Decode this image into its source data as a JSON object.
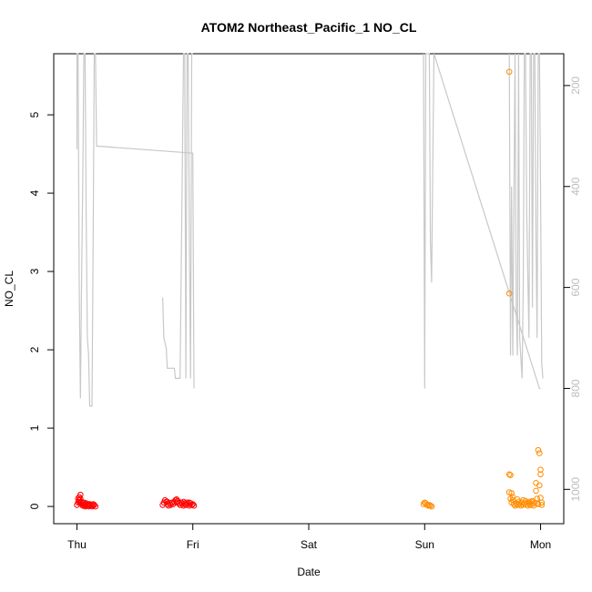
{
  "chart_data": {
    "type": "scatter",
    "title": "ATOM2 Northeast_Pacific_1 NO_CL",
    "xlabel": "Date",
    "ylabel": "NO_CL",
    "x_tick_labels": [
      "Thu",
      "Fri",
      "Sat",
      "Sun",
      "Mon"
    ],
    "x_tick_values": [
      0,
      1,
      2,
      3,
      4
    ],
    "xlim": [
      -0.2,
      4.2
    ],
    "ylim": [
      -0.22,
      5.78
    ],
    "y_ticks": [
      0,
      1,
      2,
      3,
      4,
      5
    ],
    "grid": false,
    "right_axis": {
      "label_color": "#bdbdbd",
      "ticks": [
        200,
        400,
        600,
        800,
        1000
      ],
      "lim": [
        1068,
        137
      ],
      "reversed": true
    },
    "colors": {
      "red_series": "#ff0000",
      "orange_series": "#ff8c00",
      "altitude_line": "#c8c8c8"
    },
    "series": [
      {
        "color_key": "red_series",
        "marker": "open-circle",
        "points": [
          [
            0.0,
            0.02
          ],
          [
            0.01,
            0.05
          ],
          [
            0.02,
            0.08
          ],
          [
            0.02,
            0.12
          ],
          [
            0.03,
            0.15
          ],
          [
            0.03,
            0.1
          ],
          [
            0.04,
            0.06
          ],
          [
            0.04,
            0.03
          ],
          [
            0.05,
            0.01
          ],
          [
            0.05,
            0.04
          ],
          [
            0.06,
            0.02
          ],
          [
            0.07,
            0.0
          ],
          [
            0.07,
            0.03
          ],
          [
            0.08,
            0.01
          ],
          [
            0.09,
            0.02
          ],
          [
            0.1,
            0.0
          ],
          [
            0.1,
            0.03
          ],
          [
            0.11,
            0.01
          ],
          [
            0.12,
            0.02
          ],
          [
            0.13,
            0.0
          ],
          [
            0.14,
            0.01
          ],
          [
            0.15,
            0.02
          ],
          [
            0.16,
            0.0
          ],
          [
            0.01,
            0.1
          ],
          [
            0.02,
            0.06
          ],
          [
            0.03,
            0.04
          ],
          [
            0.06,
            0.05
          ],
          [
            0.08,
            0.04
          ],
          [
            0.11,
            0.03
          ],
          [
            0.14,
            0.03
          ],
          [
            0.74,
            0.02
          ],
          [
            0.75,
            0.05
          ],
          [
            0.76,
            0.08
          ],
          [
            0.77,
            0.06
          ],
          [
            0.78,
            0.03
          ],
          [
            0.79,
            0.01
          ],
          [
            0.8,
            0.04
          ],
          [
            0.81,
            0.02
          ],
          [
            0.82,
            0.05
          ],
          [
            0.83,
            0.03
          ],
          [
            0.84,
            0.06
          ],
          [
            0.85,
            0.08
          ],
          [
            0.86,
            0.09
          ],
          [
            0.87,
            0.07
          ],
          [
            0.88,
            0.04
          ],
          [
            0.89,
            0.02
          ],
          [
            0.9,
            0.05
          ],
          [
            0.91,
            0.03
          ],
          [
            0.92,
            0.01
          ],
          [
            0.93,
            0.04
          ],
          [
            0.94,
            0.02
          ],
          [
            0.95,
            0.05
          ],
          [
            0.96,
            0.03
          ],
          [
            0.97,
            0.01
          ],
          [
            0.98,
            0.04
          ],
          [
            0.99,
            0.02
          ],
          [
            1.0,
            0.03
          ],
          [
            1.01,
            0.01
          ],
          [
            0.78,
            0.06
          ],
          [
            0.86,
            0.05
          ],
          [
            0.92,
            0.06
          ],
          [
            0.97,
            0.05
          ]
        ]
      },
      {
        "color_key": "orange_series",
        "marker": "open-circle",
        "points": [
          [
            2.99,
            0.03
          ],
          [
            3.0,
            0.05
          ],
          [
            3.01,
            0.04
          ],
          [
            3.02,
            0.02
          ],
          [
            3.03,
            0.01
          ],
          [
            3.04,
            0.02
          ],
          [
            3.05,
            0.01
          ],
          [
            3.06,
            0.0
          ],
          [
            3.73,
            5.55
          ],
          [
            3.73,
            2.72
          ],
          [
            3.73,
            0.41
          ],
          [
            3.74,
            0.4
          ],
          [
            3.73,
            0.18
          ],
          [
            3.75,
            0.17
          ],
          [
            3.74,
            0.1
          ],
          [
            3.76,
            0.08
          ],
          [
            3.75,
            0.05
          ],
          [
            3.77,
            0.03
          ],
          [
            3.78,
            0.01
          ],
          [
            3.79,
            0.04
          ],
          [
            3.8,
            0.02
          ],
          [
            3.81,
            0.06
          ],
          [
            3.82,
            0.03
          ],
          [
            3.83,
            0.01
          ],
          [
            3.84,
            0.05
          ],
          [
            3.85,
            0.02
          ],
          [
            3.86,
            0.04
          ],
          [
            3.87,
            0.07
          ],
          [
            3.88,
            0.03
          ],
          [
            3.89,
            0.01
          ],
          [
            3.9,
            0.04
          ],
          [
            3.91,
            0.02
          ],
          [
            3.92,
            0.06
          ],
          [
            3.93,
            0.03
          ],
          [
            3.94,
            0.01
          ],
          [
            3.95,
            0.05
          ],
          [
            3.96,
            0.3
          ],
          [
            3.96,
            0.2
          ],
          [
            3.97,
            0.1
          ],
          [
            3.98,
            0.72
          ],
          [
            3.99,
            0.68
          ],
          [
            4.0,
            0.47
          ],
          [
            4.0,
            0.41
          ],
          [
            3.99,
            0.27
          ],
          [
            4.0,
            0.11
          ],
          [
            4.01,
            0.05
          ],
          [
            4.01,
            0.02
          ],
          [
            3.98,
            0.03
          ],
          [
            3.76,
            0.12
          ],
          [
            3.8,
            0.09
          ],
          [
            3.85,
            0.08
          ],
          [
            3.9,
            0.06
          ],
          [
            3.93,
            0.07
          ],
          [
            3.97,
            0.04
          ]
        ]
      }
    ],
    "altitude_line": {
      "color_key": "altitude_line",
      "segments": [
        [
          [
            0.0,
            326
          ],
          [
            0.0,
            137
          ],
          [
            0.01,
            137
          ],
          [
            0.02,
            600
          ],
          [
            0.03,
            820
          ],
          [
            0.04,
            600
          ],
          [
            0.05,
            400
          ],
          [
            0.06,
            137
          ],
          [
            0.07,
            137
          ],
          [
            0.08,
            450
          ],
          [
            0.09,
            700
          ],
          [
            0.1,
            730
          ],
          [
            0.11,
            835
          ],
          [
            0.13,
            835
          ],
          [
            0.14,
            500
          ],
          [
            0.15,
            137
          ],
          [
            0.16,
            137
          ],
          [
            0.17,
            320
          ],
          [
            1.0,
            334
          ],
          [
            1.01,
            800
          ]
        ],
        [
          [
            0.74,
            620
          ],
          [
            0.75,
            700
          ],
          [
            0.77,
            720
          ],
          [
            0.78,
            760
          ],
          [
            0.84,
            760
          ],
          [
            0.85,
            780
          ],
          [
            0.89,
            780
          ],
          [
            0.92,
            137
          ],
          [
            0.93,
            137
          ],
          [
            0.94,
            780
          ],
          [
            0.95,
            137
          ],
          [
            0.96,
            137
          ],
          [
            0.97,
            500
          ],
          [
            0.98,
            780
          ],
          [
            0.99,
            137
          ],
          [
            1.0,
            137
          ]
        ],
        [
          [
            2.99,
            137
          ],
          [
            3.0,
            800
          ],
          [
            3.01,
            137
          ],
          [
            3.04,
            137
          ],
          [
            3.05,
            510
          ],
          [
            3.06,
            590
          ],
          [
            3.07,
            350
          ],
          [
            3.08,
            137
          ],
          [
            3.99,
            800
          ],
          [
            4.0,
            800
          ]
        ],
        [
          [
            3.73,
            137
          ],
          [
            3.74,
            735
          ],
          [
            3.75,
            400
          ],
          [
            3.76,
            735
          ],
          [
            3.78,
            137
          ],
          [
            3.79,
            640
          ],
          [
            3.8,
            735
          ],
          [
            3.81,
            137
          ],
          [
            3.82,
            700
          ],
          [
            3.84,
            780
          ],
          [
            3.85,
            600
          ],
          [
            3.86,
            137
          ],
          [
            3.87,
            137
          ],
          [
            3.88,
            450
          ],
          [
            3.9,
            700
          ],
          [
            3.91,
            137
          ],
          [
            3.92,
            137
          ],
          [
            3.93,
            640
          ],
          [
            3.94,
            137
          ],
          [
            3.95,
            137
          ],
          [
            3.96,
            500
          ],
          [
            3.97,
            700
          ],
          [
            3.98,
            137
          ],
          [
            3.99,
            137
          ],
          [
            4.0,
            400
          ],
          [
            4.01,
            750
          ],
          [
            4.02,
            780
          ]
        ]
      ]
    }
  }
}
